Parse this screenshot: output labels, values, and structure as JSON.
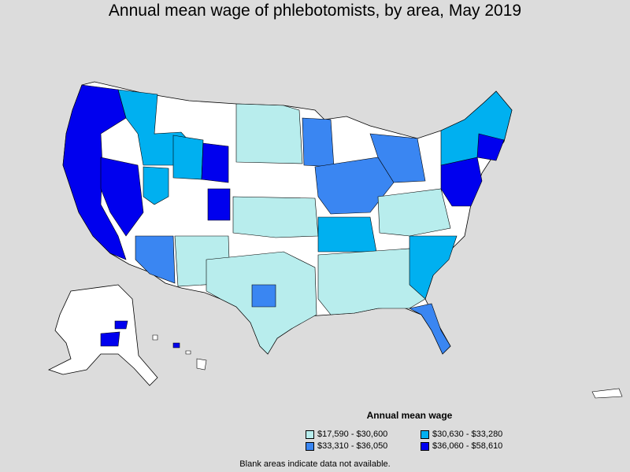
{
  "title": "Annual mean wage of phlebotomists, by area, May 2019",
  "legend": {
    "title": "Annual mean wage",
    "items": [
      {
        "label": "$17,590 - $30,600",
        "color": "#b8eded"
      },
      {
        "label": "$30,630 - $33,280",
        "color": "#00b0f0"
      },
      {
        "label": "$33,310 - $36,050",
        "color": "#3a86f2"
      },
      {
        "label": "$36,060 - $58,610",
        "color": "#0000ee"
      }
    ]
  },
  "footnote": "Blank areas indicate data not available.",
  "colors": {
    "background": "#dcdcdc",
    "no_data": "#ffffff",
    "border": "#000000"
  }
}
